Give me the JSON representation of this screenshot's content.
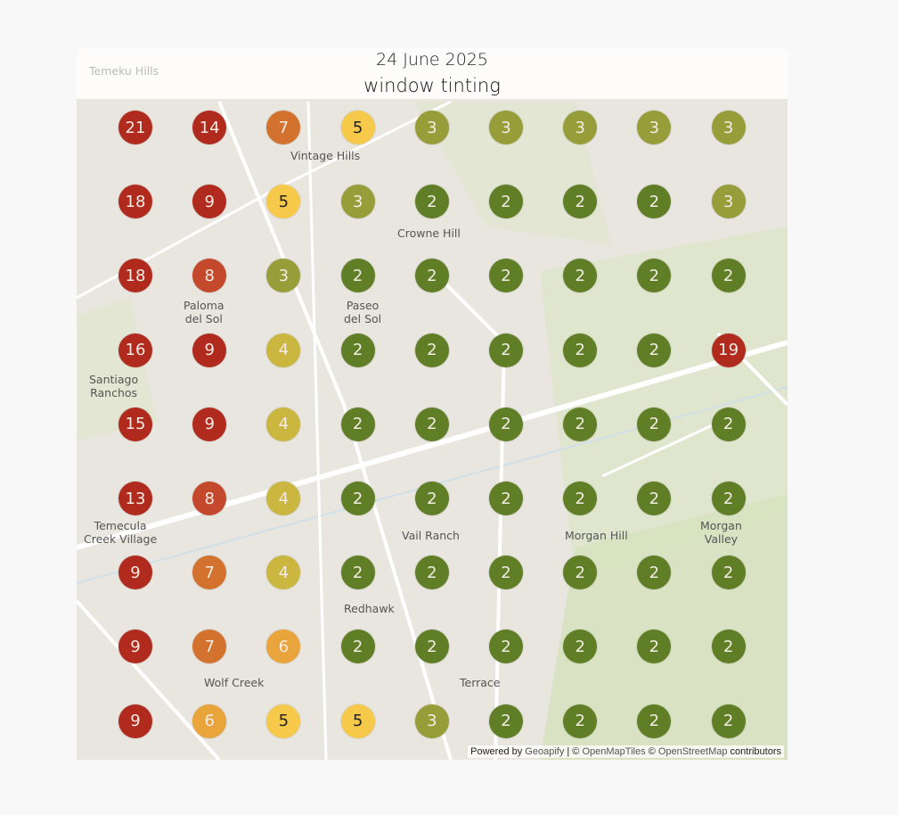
{
  "header": {
    "date": "24 June 2025",
    "title": "window tinting"
  },
  "map": {
    "places": [
      {
        "name": "Temeku Hills",
        "pos": "header-left"
      },
      {
        "name": "Vintage Hills"
      },
      {
        "name": "Crowne Hill"
      },
      {
        "name": "Paloma del Sol"
      },
      {
        "name": "Paseo del Sol"
      },
      {
        "name": "Santiago Ranchos"
      },
      {
        "name": "Temecula Creek Village"
      },
      {
        "name": "Vail Ranch"
      },
      {
        "name": "Morgan Hill"
      },
      {
        "name": "Morgan Valley"
      },
      {
        "name": "Redhawk"
      },
      {
        "name": "Wolf Creek"
      },
      {
        "name": "Terrace"
      }
    ],
    "grid_values": [
      [
        21,
        14,
        7,
        5,
        3,
        3,
        3,
        3,
        3
      ],
      [
        18,
        9,
        5,
        3,
        2,
        2,
        2,
        2,
        3
      ],
      [
        18,
        8,
        3,
        2,
        2,
        2,
        2,
        2,
        2
      ],
      [
        16,
        9,
        4,
        2,
        2,
        2,
        2,
        2,
        19
      ],
      [
        15,
        9,
        4,
        2,
        2,
        2,
        2,
        2,
        2
      ],
      [
        13,
        8,
        4,
        2,
        2,
        2,
        2,
        2,
        2
      ],
      [
        9,
        7,
        4,
        2,
        2,
        2,
        2,
        2,
        2
      ],
      [
        9,
        7,
        6,
        2,
        2,
        2,
        2,
        2,
        2
      ],
      [
        9,
        6,
        5,
        5,
        3,
        2,
        2,
        2,
        2
      ]
    ],
    "colors": {
      "high": "#b02a1e",
      "8": "#c4482c",
      "7": "#d3722e",
      "6": "#e9a43c",
      "5": "#f6c94b",
      "4": "#cbb63f",
      "3": "#979d39",
      "2": "#5f7e25"
    }
  },
  "attribution": {
    "powered": "Powered by",
    "geoapify": "Geoapify",
    "sep": " | © ",
    "omt": "OpenMapTiles",
    "osm_pre": " © ",
    "osm": "OpenStreetMap",
    "contrib": " contributors"
  }
}
